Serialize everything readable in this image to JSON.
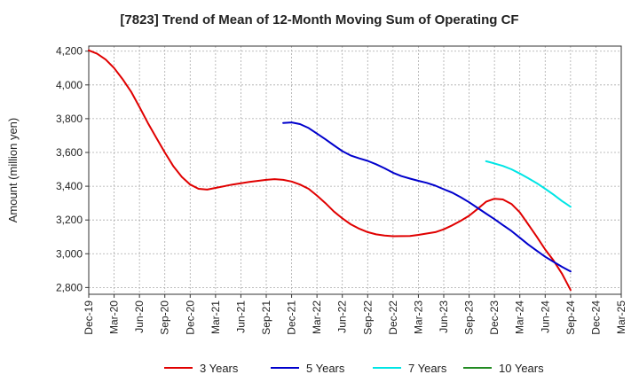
{
  "chart_data": {
    "type": "line",
    "title": "[7823]  Trend of Mean of 12-Month Moving Sum of Operating CF",
    "xlabel": "",
    "ylabel": "Amount (million yen)",
    "ylim": [
      2760,
      4230
    ],
    "yticks": [
      2800,
      3000,
      3200,
      3400,
      3600,
      3800,
      4000,
      4200
    ],
    "ytick_labels": [
      "2,800",
      "3,000",
      "3,200",
      "3,400",
      "3,600",
      "3,800",
      "4,000",
      "4,200"
    ],
    "x_categories": [
      "Dec-19",
      "Mar-20",
      "Jun-20",
      "Sep-20",
      "Dec-20",
      "Mar-21",
      "Jun-21",
      "Sep-21",
      "Dec-21",
      "Mar-22",
      "Jun-22",
      "Sep-22",
      "Dec-22",
      "Mar-23",
      "Jun-23",
      "Sep-23",
      "Dec-23",
      "Mar-24",
      "Jun-24",
      "Sep-24",
      "Dec-24",
      "Mar-25"
    ],
    "grid": true,
    "legend_position": "bottom",
    "series": [
      {
        "name": "3 Years",
        "color": "#e00000",
        "points": [
          [
            0,
            4205
          ],
          [
            0.33,
            4185
          ],
          [
            0.67,
            4150
          ],
          [
            1,
            4100
          ],
          [
            1.33,
            4035
          ],
          [
            1.67,
            3960
          ],
          [
            2,
            3870
          ],
          [
            2.33,
            3775
          ],
          [
            2.67,
            3685
          ],
          [
            3,
            3600
          ],
          [
            3.33,
            3520
          ],
          [
            3.67,
            3455
          ],
          [
            4,
            3410
          ],
          [
            4.33,
            3385
          ],
          [
            4.67,
            3380
          ],
          [
            5,
            3390
          ],
          [
            5.67,
            3410
          ],
          [
            6.33,
            3425
          ],
          [
            7,
            3438
          ],
          [
            7.33,
            3442
          ],
          [
            7.67,
            3438
          ],
          [
            8,
            3428
          ],
          [
            8.33,
            3410
          ],
          [
            8.67,
            3385
          ],
          [
            9,
            3345
          ],
          [
            9.33,
            3300
          ],
          [
            9.67,
            3250
          ],
          [
            10,
            3210
          ],
          [
            10.33,
            3175
          ],
          [
            10.67,
            3148
          ],
          [
            11,
            3128
          ],
          [
            11.33,
            3115
          ],
          [
            11.67,
            3108
          ],
          [
            12,
            3104
          ],
          [
            12.67,
            3105
          ],
          [
            13,
            3112
          ],
          [
            13.67,
            3128
          ],
          [
            14,
            3145
          ],
          [
            14.33,
            3168
          ],
          [
            14.67,
            3195
          ],
          [
            15,
            3225
          ],
          [
            15.33,
            3265
          ],
          [
            15.67,
            3308
          ],
          [
            16,
            3326
          ],
          [
            16.33,
            3322
          ],
          [
            16.67,
            3295
          ],
          [
            17,
            3245
          ],
          [
            17.33,
            3175
          ],
          [
            17.67,
            3100
          ],
          [
            18,
            3025
          ],
          [
            18.33,
            2960
          ],
          [
            18.67,
            2880
          ],
          [
            19,
            2785
          ]
        ]
      },
      {
        "name": "5 Years",
        "color": "#0000cc",
        "points": [
          [
            7.67,
            3775
          ],
          [
            8,
            3778
          ],
          [
            8.33,
            3768
          ],
          [
            8.67,
            3745
          ],
          [
            9,
            3712
          ],
          [
            9.33,
            3678
          ],
          [
            9.67,
            3642
          ],
          [
            10,
            3608
          ],
          [
            10.33,
            3582
          ],
          [
            10.67,
            3565
          ],
          [
            11,
            3550
          ],
          [
            11.33,
            3530
          ],
          [
            11.67,
            3506
          ],
          [
            12,
            3480
          ],
          [
            12.33,
            3460
          ],
          [
            12.67,
            3445
          ],
          [
            13,
            3432
          ],
          [
            13.33,
            3420
          ],
          [
            13.67,
            3403
          ],
          [
            14,
            3382
          ],
          [
            14.33,
            3362
          ],
          [
            14.67,
            3335
          ],
          [
            15,
            3305
          ],
          [
            15.33,
            3272
          ],
          [
            15.67,
            3238
          ],
          [
            16,
            3205
          ],
          [
            16.33,
            3170
          ],
          [
            16.67,
            3135
          ],
          [
            17,
            3095
          ],
          [
            17.33,
            3055
          ],
          [
            17.67,
            3018
          ],
          [
            18,
            2982
          ],
          [
            18.33,
            2952
          ],
          [
            18.67,
            2922
          ],
          [
            19,
            2895
          ]
        ]
      },
      {
        "name": "7 Years",
        "color": "#00e5e5",
        "points": [
          [
            15.67,
            3548
          ],
          [
            16,
            3535
          ],
          [
            16.33,
            3520
          ],
          [
            16.67,
            3500
          ],
          [
            17,
            3475
          ],
          [
            17.33,
            3448
          ],
          [
            17.67,
            3418
          ],
          [
            18,
            3385
          ],
          [
            18.33,
            3350
          ],
          [
            18.67,
            3312
          ],
          [
            19,
            3278
          ]
        ]
      },
      {
        "name": "10 Years",
        "color": "#228b22",
        "points": []
      }
    ]
  }
}
